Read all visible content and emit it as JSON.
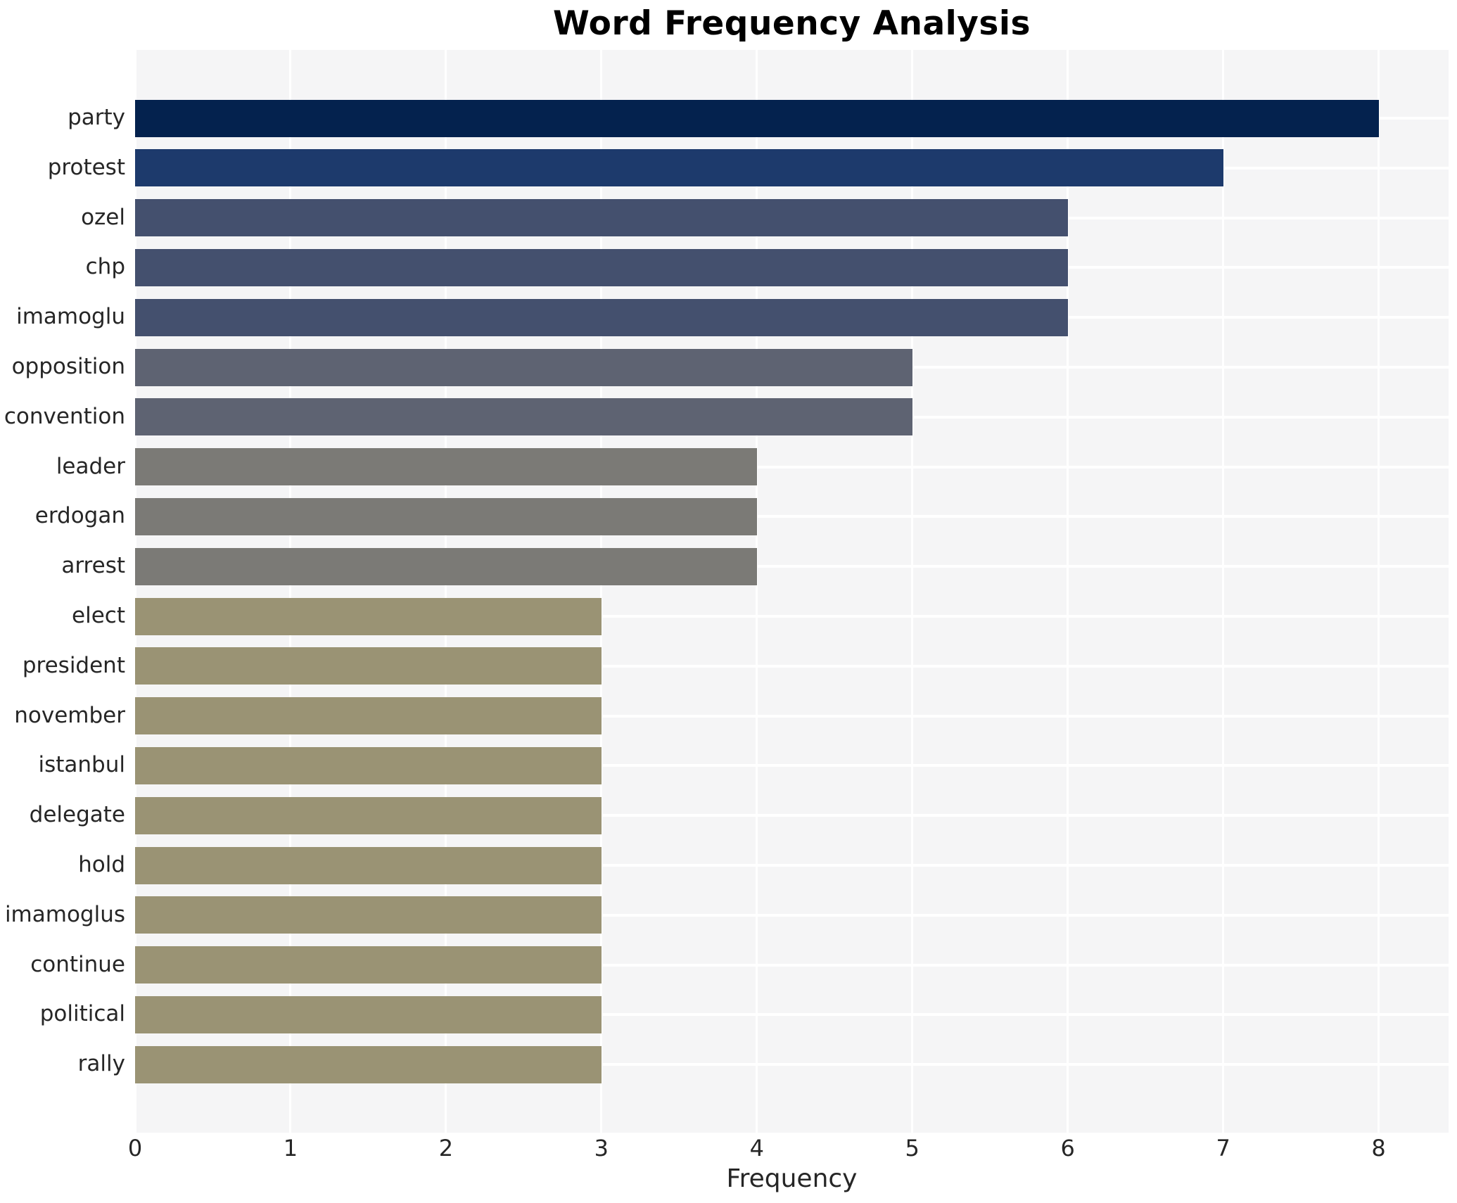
{
  "chart_data": {
    "type": "bar",
    "orientation": "horizontal",
    "title": "Word Frequency Analysis",
    "xlabel": "Frequency",
    "ylabel": "",
    "categories": [
      "party",
      "protest",
      "ozel",
      "chp",
      "imamoglu",
      "opposition",
      "convention",
      "leader",
      "erdogan",
      "arrest",
      "elect",
      "president",
      "november",
      "istanbul",
      "delegate",
      "hold",
      "imamoglus",
      "continue",
      "political",
      "rally"
    ],
    "values": [
      8,
      7,
      6,
      6,
      6,
      5,
      5,
      4,
      4,
      4,
      3,
      3,
      3,
      3,
      3,
      3,
      3,
      3,
      3,
      3
    ],
    "xlim": [
      0,
      8.45
    ],
    "xticks": [
      0,
      1,
      2,
      3,
      4,
      5,
      6,
      7,
      8
    ],
    "grid": true,
    "legend": false,
    "colors_by_value": {
      "8": "#04224e",
      "7": "#1d3a6c",
      "6": "#44506e",
      "5": "#5e6372",
      "4": "#7b7a76",
      "3": "#9a9374"
    },
    "plot_bg": "#f5f5f6",
    "grid_color": "#ffffff",
    "text_color": "#262626",
    "title_color": "#000000"
  }
}
